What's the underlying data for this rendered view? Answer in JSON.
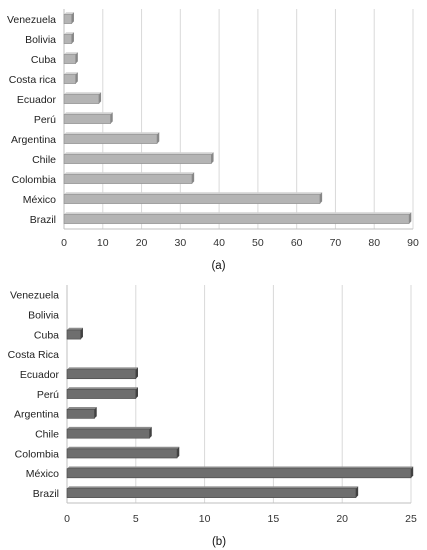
{
  "chart_data": [
    {
      "type": "bar",
      "orientation": "horizontal",
      "caption": "(a)",
      "categories": [
        "Venezuela",
        "Bolivia",
        "Cuba",
        "Costa rica",
        "Ecuador",
        "Perú",
        "Argentina",
        "Chile",
        "Colombia",
        "México",
        "Brazil"
      ],
      "values": [
        2,
        2,
        3,
        3,
        9,
        12,
        24,
        38,
        33,
        66,
        89
      ],
      "xlim": [
        0,
        90
      ],
      "xticks": [
        0,
        10,
        20,
        30,
        40,
        50,
        60,
        70,
        80,
        90
      ],
      "grid": true,
      "bar_color": "#b4b4b4",
      "title": "",
      "xlabel": "",
      "ylabel": ""
    },
    {
      "type": "bar",
      "orientation": "horizontal",
      "caption": "(b)",
      "categories": [
        "Venezuela",
        "Bolivia",
        "Cuba",
        "Costa Rica",
        "Ecuador",
        "Perú",
        "Argentina",
        "Chile",
        "Colombia",
        "México",
        "Brazil"
      ],
      "values": [
        0,
        0,
        1,
        0,
        5,
        5,
        2,
        6,
        8,
        25,
        21
      ],
      "xlim": [
        0,
        25
      ],
      "xticks": [
        0,
        5,
        10,
        15,
        20,
        25
      ],
      "grid": true,
      "bar_color": "#6e6e6e",
      "title": "",
      "xlabel": "",
      "ylabel": ""
    }
  ]
}
